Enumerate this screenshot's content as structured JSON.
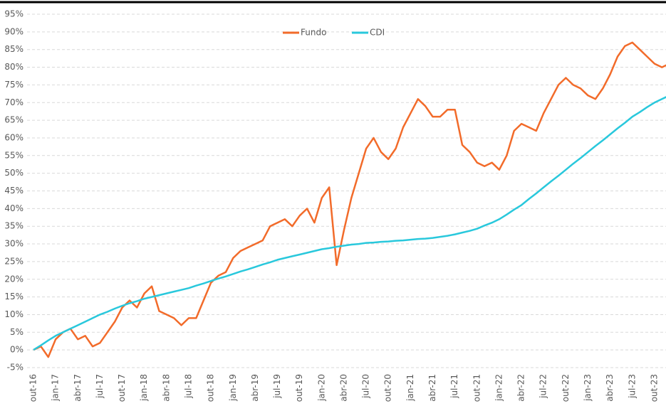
{
  "chart_data": {
    "type": "line",
    "categories": [
      "out-16",
      null,
      null,
      "jan-17",
      null,
      null,
      "abr-17",
      null,
      null,
      "jul-17",
      null,
      null,
      "out-17",
      null,
      null,
      "jan-18",
      null,
      null,
      "abr-18",
      null,
      null,
      "jul-18",
      null,
      null,
      "out-18",
      null,
      null,
      "jan-19",
      null,
      null,
      "abr-19",
      null,
      null,
      "jul-19",
      null,
      null,
      "out-19",
      null,
      null,
      "jan-20",
      null,
      null,
      "abr-20",
      null,
      null,
      "jul-20",
      null,
      null,
      "out-20",
      null,
      null,
      "jan-21",
      null,
      null,
      "abr-21",
      null,
      null,
      "jul-21",
      null,
      null,
      "out-21",
      null,
      null,
      "jan-22",
      null,
      null,
      "abr-22",
      null,
      null,
      "jul-22",
      null,
      null,
      "out-22",
      null,
      null,
      "jan-23",
      null,
      null,
      "abr-23",
      null,
      null,
      "jul-23",
      null,
      null,
      "out-23",
      null,
      null
    ],
    "series": [
      {
        "name": "Fundo",
        "color": "#f26b2a",
        "values": [
          0,
          1,
          -2,
          3,
          5,
          6,
          3,
          4,
          1,
          2,
          5,
          8,
          12,
          14,
          12,
          16,
          18,
          11,
          10,
          9,
          7,
          9,
          9,
          14,
          19,
          21,
          22,
          26,
          28,
          29,
          30,
          31,
          35,
          36,
          37,
          35,
          38,
          40,
          36,
          43,
          46,
          24,
          34,
          43,
          50,
          57,
          60,
          56,
          54,
          57,
          63,
          67,
          71,
          69,
          66,
          66,
          68,
          68,
          58,
          56,
          53,
          52,
          53,
          51,
          55,
          62,
          64,
          63,
          62,
          67,
          71,
          75,
          77,
          75,
          74,
          72,
          71,
          74,
          78,
          83,
          86,
          87,
          85,
          83,
          81,
          80,
          81
        ]
      },
      {
        "name": "CDI",
        "color": "#29c8dc",
        "values": [
          0,
          1.3,
          2.7,
          4,
          5,
          6,
          7,
          8,
          9,
          10,
          10.8,
          11.7,
          12.5,
          13.2,
          13.8,
          14.5,
          15,
          15.5,
          16,
          16.5,
          17,
          17.5,
          18.2,
          18.8,
          19.5,
          20.2,
          20.8,
          21.5,
          22.2,
          22.8,
          23.5,
          24.2,
          24.8,
          25.5,
          26,
          26.5,
          27,
          27.5,
          28,
          28.5,
          28.8,
          29.2,
          29.5,
          29.8,
          30,
          30.3,
          30.4,
          30.6,
          30.7,
          30.9,
          31,
          31.2,
          31.4,
          31.5,
          31.7,
          32,
          32.3,
          32.7,
          33.2,
          33.7,
          34.3,
          35.2,
          36,
          37,
          38.3,
          39.7,
          41,
          42.7,
          44.3,
          46,
          47.7,
          49.3,
          51,
          52.7,
          54.3,
          56,
          57.7,
          59.3,
          61,
          62.7,
          64.3,
          66,
          67.3,
          68.7,
          70,
          71,
          72
        ]
      }
    ],
    "ylim": [
      -5,
      95
    ],
    "yticks": [
      {
        "value": -5,
        "label": "-5%"
      },
      {
        "value": 0,
        "label": "0%"
      },
      {
        "value": 5,
        "label": "5%"
      },
      {
        "value": 10,
        "label": "10%"
      },
      {
        "value": 15,
        "label": "15%"
      },
      {
        "value": 20,
        "label": "20%"
      },
      {
        "value": 25,
        "label": "25%"
      },
      {
        "value": 30,
        "label": "30%"
      },
      {
        "value": 35,
        "label": "35%"
      },
      {
        "value": 40,
        "label": "40%"
      },
      {
        "value": 45,
        "label": "45%"
      },
      {
        "value": 50,
        "label": "50%"
      },
      {
        "value": 55,
        "label": "55%"
      },
      {
        "value": 60,
        "label": "60%"
      },
      {
        "value": 65,
        "label": "65%"
      },
      {
        "value": 70,
        "label": "70%"
      },
      {
        "value": 75,
        "label": "75%"
      },
      {
        "value": 80,
        "label": "80%"
      },
      {
        "value": 85,
        "label": "85%"
      },
      {
        "value": 90,
        "label": "90%"
      },
      {
        "value": 95,
        "label": "95%"
      }
    ],
    "grid": true,
    "legend": "top"
  }
}
